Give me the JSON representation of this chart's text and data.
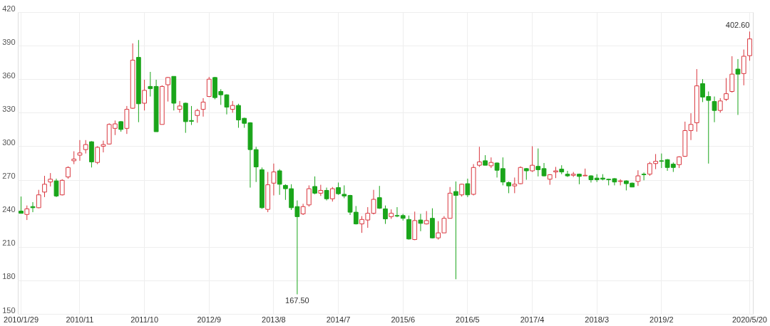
{
  "chart_data": {
    "type": "candlestick",
    "categories": [
      "2010/1/29",
      null,
      null,
      null,
      null,
      null,
      null,
      null,
      null,
      null,
      "2010/11",
      null,
      null,
      null,
      null,
      null,
      null,
      null,
      null,
      null,
      null,
      "2011/10",
      null,
      null,
      null,
      null,
      null,
      null,
      null,
      null,
      null,
      null,
      "2012/9",
      null,
      null,
      null,
      null,
      null,
      null,
      null,
      null,
      null,
      null,
      "2013/8",
      null,
      null,
      null,
      null,
      null,
      null,
      null,
      null,
      null,
      null,
      "2014/7",
      null,
      null,
      null,
      null,
      null,
      null,
      null,
      null,
      null,
      null,
      "2015/6",
      null,
      null,
      null,
      null,
      null,
      null,
      null,
      null,
      null,
      null,
      "2016/5",
      null,
      null,
      null,
      null,
      null,
      null,
      null,
      null,
      null,
      null,
      "2017/4",
      null,
      null,
      null,
      null,
      null,
      null,
      null,
      null,
      null,
      null,
      "2018/3",
      null,
      null,
      null,
      null,
      null,
      null,
      null,
      null,
      null,
      null,
      "2019/2",
      null,
      null,
      null,
      null,
      null,
      null,
      null,
      null,
      null,
      null,
      null,
      null,
      null,
      null,
      "2020/5/20"
    ],
    "ohlc": [
      [
        242,
        255,
        240,
        240
      ],
      [
        239,
        247,
        234,
        244
      ],
      [
        246,
        250,
        241,
        245
      ],
      [
        245,
        261,
        244.5,
        256.5
      ],
      [
        259,
        273.5,
        254.5,
        266
      ],
      [
        268,
        276,
        264,
        270.5
      ],
      [
        269,
        271,
        254.5,
        255.5
      ],
      [
        256.5,
        270.5,
        256,
        269.5
      ],
      [
        272.5,
        282,
        271,
        281
      ],
      [
        287,
        295.5,
        284,
        288.5
      ],
      [
        292,
        305.5,
        287,
        294
      ],
      [
        297,
        305.5,
        293.5,
        301.5
      ],
      [
        304,
        304.5,
        281,
        286
      ],
      [
        285.5,
        300,
        284,
        299
      ],
      [
        300,
        305,
        294.5,
        301.5
      ],
      [
        302,
        320.5,
        301.5,
        319.5
      ],
      [
        316,
        323,
        310,
        320
      ],
      [
        322,
        322.5,
        313,
        315
      ],
      [
        316,
        336,
        311,
        333
      ],
      [
        334,
        392,
        333.5,
        377
      ],
      [
        379.5,
        395,
        321.5,
        338
      ],
      [
        338.5,
        359.5,
        332,
        350
      ],
      [
        353.5,
        366.5,
        344.5,
        351.5
      ],
      [
        353.5,
        359.5,
        313,
        313
      ],
      [
        319.5,
        354.5,
        319.5,
        353.5
      ],
      [
        355,
        362,
        340,
        361.5
      ],
      [
        362.5,
        362.5,
        332,
        338.5
      ],
      [
        333,
        340.5,
        330,
        336
      ],
      [
        338.5,
        339,
        312,
        322
      ],
      [
        323,
        336,
        319,
        322.3
      ],
      [
        327.5,
        333.5,
        321,
        332
      ],
      [
        333,
        343,
        326.5,
        339.5
      ],
      [
        344.5,
        362,
        344,
        360
      ],
      [
        361.5,
        362,
        342,
        343.5
      ],
      [
        349,
        351,
        337,
        346
      ],
      [
        346,
        346.5,
        328.5,
        335
      ],
      [
        333,
        340.5,
        330,
        336.5
      ],
      [
        336.5,
        338,
        316.5,
        323.5
      ],
      [
        325,
        325.5,
        316.5,
        320.5
      ],
      [
        321,
        321.5,
        263,
        297
      ],
      [
        297,
        299.5,
        268,
        281.5
      ],
      [
        279,
        281,
        244,
        245
      ],
      [
        243.5,
        277,
        241,
        265.5
      ],
      [
        267,
        284.5,
        256,
        277
      ],
      [
        278,
        279.5,
        256.5,
        266
      ],
      [
        265,
        266,
        252,
        262
      ],
      [
        262,
        266,
        243,
        245
      ],
      [
        246,
        251.5,
        167.5,
        237
      ],
      [
        239.5,
        248.5,
        238.5,
        246
      ],
      [
        247.5,
        265,
        246,
        262
      ],
      [
        264,
        273,
        257,
        258
      ],
      [
        258,
        265.5,
        255.5,
        260.5
      ],
      [
        260.5,
        263,
        251.5,
        253
      ],
      [
        253,
        263.5,
        250.5,
        262
      ],
      [
        263,
        267.5,
        256.5,
        257.5
      ],
      [
        257,
        265,
        253.5,
        255.5
      ],
      [
        256,
        256.5,
        238.5,
        241
      ],
      [
        241,
        246.5,
        230,
        230.5
      ],
      [
        230.5,
        237.5,
        222.5,
        234.5
      ],
      [
        234,
        245.5,
        227,
        240
      ],
      [
        240,
        261,
        239,
        252.5
      ],
      [
        254,
        264.5,
        244,
        244.5
      ],
      [
        244,
        247,
        230.5,
        235
      ],
      [
        237,
        243.5,
        235,
        240
      ],
      [
        238,
        245.5,
        236.5,
        237.5
      ],
      [
        238,
        239.5,
        233.5,
        235.5
      ],
      [
        234.5,
        238,
        216.5,
        217
      ],
      [
        216.5,
        241.5,
        216,
        233.5
      ],
      [
        234,
        239.5,
        224,
        231
      ],
      [
        230.5,
        242,
        230,
        233.5
      ],
      [
        235.5,
        244.5,
        217.5,
        218
      ],
      [
        218,
        233,
        216.5,
        222.5
      ],
      [
        222.5,
        237.5,
        222.5,
        235.5
      ],
      [
        235.5,
        263.5,
        235.5,
        258
      ],
      [
        259.5,
        268.5,
        181,
        256
      ],
      [
        256.5,
        266.5,
        255,
        266
      ],
      [
        266.5,
        271,
        254.5,
        256.5
      ],
      [
        257,
        284,
        256,
        281
      ],
      [
        283,
        299.5,
        281.5,
        286
      ],
      [
        287,
        292,
        283,
        283
      ],
      [
        282.5,
        290,
        280.5,
        285.5
      ],
      [
        285,
        285.5,
        272,
        278.5
      ],
      [
        280,
        290,
        265,
        268
      ],
      [
        267.5,
        268.5,
        258,
        264.5
      ],
      [
        264.5,
        272,
        258,
        266
      ],
      [
        266.5,
        282,
        266,
        281
      ],
      [
        280,
        280.5,
        270,
        278
      ],
      [
        278,
        300,
        277,
        283
      ],
      [
        282,
        298,
        273,
        279
      ],
      [
        280,
        285,
        273,
        273.5
      ],
      [
        270.5,
        275,
        265.5,
        274.5
      ],
      [
        277,
        281.5,
        271.5,
        278
      ],
      [
        279.5,
        283,
        275,
        277
      ],
      [
        275,
        278,
        272.5,
        273.5
      ],
      [
        274,
        277,
        272.5,
        275
      ],
      [
        275,
        275.5,
        266,
        273
      ],
      [
        273.5,
        280,
        273.5,
        274
      ],
      [
        273.5,
        274,
        267.5,
        270
      ],
      [
        271.5,
        275,
        268,
        270
      ],
      [
        271.5,
        275,
        269.5,
        270.5
      ],
      [
        270.5,
        271,
        265,
        270
      ],
      [
        271,
        271.5,
        265,
        268
      ],
      [
        268.5,
        270.5,
        265,
        269
      ],
      [
        269,
        269.5,
        260.5,
        266.5
      ],
      [
        267,
        267.5,
        263.5,
        263.5
      ],
      [
        268.5,
        278.5,
        264.5,
        273.5
      ],
      [
        275,
        276.5,
        269.5,
        274.5
      ],
      [
        275,
        286,
        273.5,
        284.5
      ],
      [
        284.5,
        293,
        279.5,
        286.5
      ],
      [
        287,
        293.5,
        280.5,
        286.5
      ],
      [
        288,
        288.5,
        278,
        281
      ],
      [
        284,
        285.5,
        277,
        281
      ],
      [
        283.5,
        291,
        280.5,
        290.5
      ],
      [
        291,
        322,
        290.5,
        314
      ],
      [
        314,
        329.5,
        305.5,
        319.5
      ],
      [
        321,
        369,
        313,
        354
      ],
      [
        356,
        360,
        339.5,
        344
      ],
      [
        344.5,
        349,
        284.5,
        341
      ],
      [
        340,
        344.5,
        321.5,
        332
      ],
      [
        332,
        343,
        330,
        340.5
      ],
      [
        342,
        361,
        340.5,
        347
      ],
      [
        349,
        380.5,
        348,
        364.5
      ],
      [
        369,
        378,
        328,
        364.5
      ],
      [
        365,
        386.5,
        354.5,
        380.5
      ],
      [
        381,
        402.6,
        376.5,
        396
      ]
    ],
    "colors": [
      "#1aa51a",
      "#d9363e",
      "#1aa51a",
      "#d9363e",
      "#d9363e",
      "#d9363e",
      "#1aa51a",
      "#d9363e",
      "#d9363e",
      "#d9363e",
      "#d9363e",
      "#d9363e",
      "#1aa51a",
      "#d9363e",
      "#d9363e",
      "#d9363e",
      "#d9363e",
      "#1aa51a",
      "#d9363e",
      "#d9363e",
      "#1aa51a",
      "#d9363e",
      "#1aa51a",
      "#1aa51a",
      "#d9363e",
      "#d9363e",
      "#1aa51a",
      "#d9363e",
      "#1aa51a",
      "#1aa51a",
      "#d9363e",
      "#d9363e",
      "#d9363e",
      "#1aa51a",
      "#1aa51a",
      "#1aa51a",
      "#d9363e",
      "#1aa51a",
      "#1aa51a",
      "#1aa51a",
      "#1aa51a",
      "#1aa51a",
      "#d9363e",
      "#d9363e",
      "#1aa51a",
      "#1aa51a",
      "#1aa51a",
      "#1aa51a",
      "#d9363e",
      "#d9363e",
      "#1aa51a",
      "#d9363e",
      "#1aa51a",
      "#d9363e",
      "#1aa51a",
      "#1aa51a",
      "#1aa51a",
      "#1aa51a",
      "#d9363e",
      "#d9363e",
      "#d9363e",
      "#1aa51a",
      "#1aa51a",
      "#d9363e",
      "#1aa51a",
      "#1aa51a",
      "#1aa51a",
      "#d9363e",
      "#1aa51a",
      "#d9363e",
      "#1aa51a",
      "#d9363e",
      "#d9363e",
      "#d9363e",
      "#1aa51a",
      "#d9363e",
      "#1aa51a",
      "#d9363e",
      "#d9363e",
      "#1aa51a",
      "#d9363e",
      "#1aa51a",
      "#1aa51a",
      "#1aa51a",
      "#d9363e",
      "#d9363e",
      "#1aa51a",
      "#d9363e",
      "#1aa51a",
      "#1aa51a",
      "#d9363e",
      "#d9363e",
      "#1aa51a",
      "#1aa51a",
      "#d9363e",
      "#1aa51a",
      "#d9363e",
      "#1aa51a",
      "#1aa51a",
      "#1aa51a",
      "#1aa51a",
      "#1aa51a",
      "#d9363e",
      "#1aa51a",
      "#1aa51a",
      "#d9363e",
      "#1aa51a",
      "#d9363e",
      "#d9363e",
      "#1aa51a",
      "#1aa51a",
      "#1aa51a",
      "#d9363e",
      "#d9363e",
      "#d9363e",
      "#d9363e",
      "#1aa51a",
      "#1aa51a",
      "#1aa51a",
      "#d9363e",
      "#d9363e",
      "#d9363e",
      "#1aa51a",
      "#d9363e",
      "#d9363e"
    ],
    "ylim": [
      150,
      420
    ],
    "yticks": [
      150,
      180,
      210,
      240,
      270,
      300,
      330,
      360,
      390,
      420
    ],
    "grid": true,
    "annotations": [
      "167.50",
      "402.60"
    ]
  }
}
